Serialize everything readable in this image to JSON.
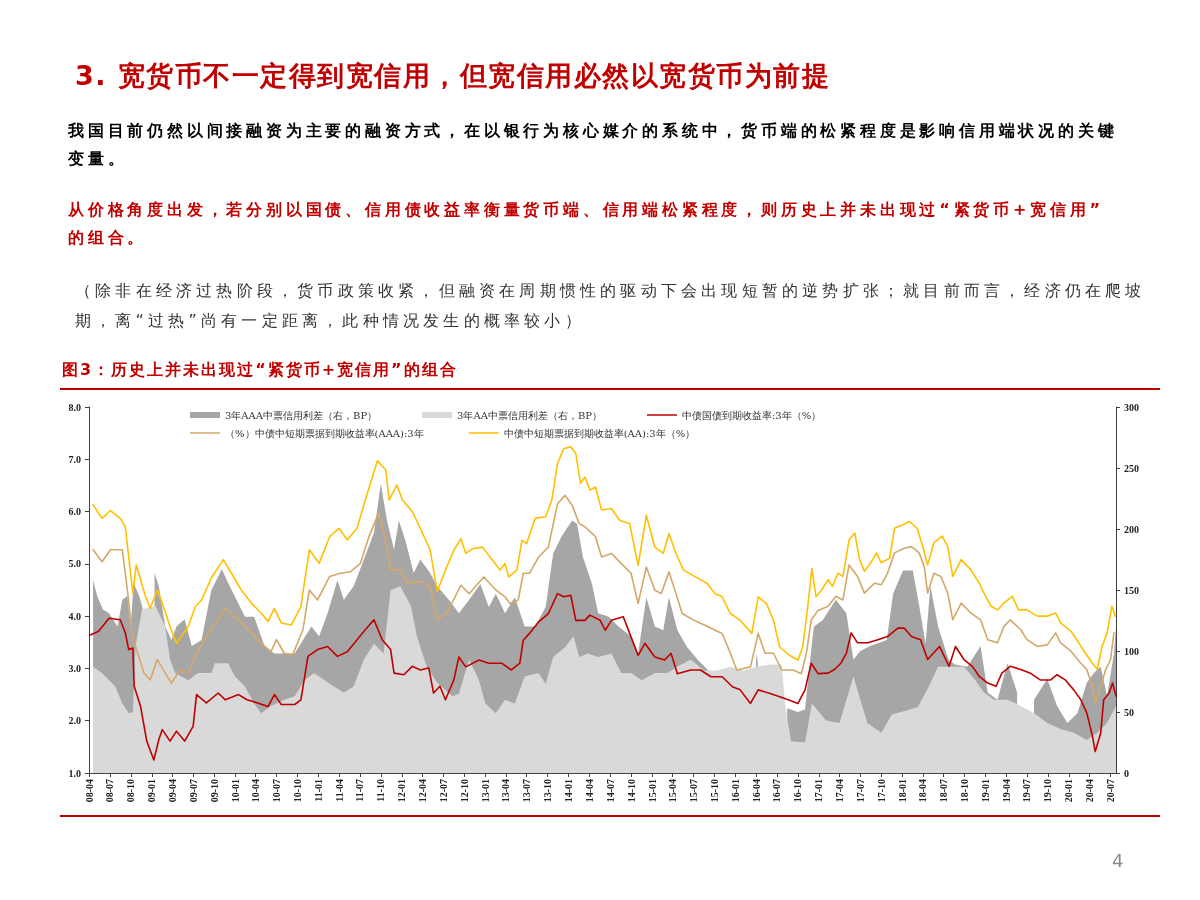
{
  "chart_data": {
    "type": "line",
    "title": "3. 宽货币不一定得到宽信用，但宽信用必然以宽货币为前提",
    "subtitle": "图3：历史上并未出现过“紧货币+宽信用”的组合",
    "annotations": [
      "我国目前仍然以间接融资为主要的融资方式，在以银行为核心媒介的系统中，货币端的松紧程度是影响信用端状况的关键变量。",
      "从价格角度出发，若分别以国债、信用债收益率衡量货币端、信用端松紧程度，则历史上并未出现过“紧货币+宽信用”的组合。",
      "（除非在经济过热阶段，货币政策收紧，但融资在周期惯性的驱动下会出现短暂的逆势扩张；就目前而言，经济仍在爬坡期，离“过热”尚有一定距离，此种情况发生的概率较小）",
      "4"
    ],
    "legend": "top",
    "marker": "none",
    "xlim": [
      "2008-04-01",
      "2020-07-25"
    ],
    "xticks": [
      {
        "value": "2008-04",
        "label": "08-04"
      },
      {
        "value": "2008-07",
        "label": "08-07"
      },
      {
        "value": "2008-10",
        "label": "08-10"
      },
      {
        "value": "2009-01",
        "label": "09-01"
      },
      {
        "value": "2009-04",
        "label": "09-04"
      },
      {
        "value": "2009-07",
        "label": "09-07"
      },
      {
        "value": "2009-10",
        "label": "09-10"
      },
      {
        "value": "2010-01",
        "label": "10-01"
      },
      {
        "value": "2010-04",
        "label": "10-04"
      },
      {
        "value": "2010-07",
        "label": "10-07"
      },
      {
        "value": "2010-10",
        "label": "10-10"
      },
      {
        "value": "2011-01",
        "label": "11-01"
      },
      {
        "value": "2011-04",
        "label": "11-04"
      },
      {
        "value": "2011-07",
        "label": "11-07"
      },
      {
        "value": "2011-10",
        "label": "11-10"
      },
      {
        "value": "2012-01",
        "label": "12-01"
      },
      {
        "value": "2012-04",
        "label": "12-04"
      },
      {
        "value": "2012-07",
        "label": "12-07"
      },
      {
        "value": "2012-10",
        "label": "12-10"
      },
      {
        "value": "2013-01",
        "label": "13-01"
      },
      {
        "value": "2013-04",
        "label": "13-04"
      },
      {
        "value": "2013-07",
        "label": "13-07"
      },
      {
        "value": "2013-10",
        "label": "13-10"
      },
      {
        "value": "2014-01",
        "label": "14-01"
      },
      {
        "value": "2014-04",
        "label": "14-04"
      },
      {
        "value": "2014-07",
        "label": "14-07"
      },
      {
        "value": "2014-10",
        "label": "14-10"
      },
      {
        "value": "2015-01",
        "label": "15-01"
      },
      {
        "value": "2015-04",
        "label": "15-04"
      },
      {
        "value": "2015-07",
        "label": "15-07"
      },
      {
        "value": "2015-10",
        "label": "15-10"
      },
      {
        "value": "2016-01",
        "label": "16-01"
      },
      {
        "value": "2016-04",
        "label": "16-04"
      },
      {
        "value": "2016-07",
        "label": "16-07"
      },
      {
        "value": "2016-10",
        "label": "16-10"
      },
      {
        "value": "2017-01",
        "label": "17-01"
      },
      {
        "value": "2017-04",
        "label": "17-04"
      },
      {
        "value": "2017-07",
        "label": "17-07"
      },
      {
        "value": "2017-10",
        "label": "17-10"
      },
      {
        "value": "2018-01",
        "label": "18-01"
      },
      {
        "value": "2018-04",
        "label": "18-04"
      },
      {
        "value": "2018-07",
        "label": "18-07"
      },
      {
        "value": "2018-10",
        "label": "18-10"
      },
      {
        "value": "2019-01",
        "label": "19-01"
      },
      {
        "value": "2019-04",
        "label": "19-04"
      },
      {
        "value": "2019-07",
        "label": "19-07"
      },
      {
        "value": "2019-10",
        "label": "19-10"
      },
      {
        "value": "2020-01",
        "label": "20-01"
      },
      {
        "value": "2020-04",
        "label": "20-04"
      },
      {
        "value": "2020-07",
        "label": "20-07"
      }
    ],
    "ylim": [
      1,
      8
    ],
    "yticks": [
      {
        "value": 1,
        "label": "1.0"
      },
      {
        "value": 2,
        "label": "2.0"
      },
      {
        "value": 3,
        "label": "3.0"
      },
      {
        "value": 4,
        "label": "4.0"
      },
      {
        "value": 5,
        "label": "5.0"
      },
      {
        "value": 6,
        "label": "6.0"
      },
      {
        "value": 7,
        "label": "7.0"
      },
      {
        "value": 8,
        "label": "8.0"
      }
    ],
    "y2lim": [
      0,
      300
    ],
    "y2ticks": [
      0,
      50,
      100,
      150,
      200,
      250,
      300
    ],
    "series": [
      {
        "name": "3年AAA中票信用利差（右，BP）",
        "type": "area",
        "axis": "y2",
        "color": "#a6a6a6",
        "x": [
          "2008-04-19",
          "2008-05-07",
          "2008-06-01",
          "2008-06-28",
          "2008-08-04",
          "2008-08-25",
          "2008-09-16",
          "2008-10-01",
          "2008-10-13",
          "2008-11-07",
          "2008-11-28",
          "2008-12-19",
          "2009-01-13",
          "2009-02-01",
          "2009-03-01",
          "2009-03-28",
          "2009-04-19",
          "2009-05-25",
          "2009-06-25",
          "2009-08-07",
          "2009-09-19",
          "2009-11-04",
          "2009-12-01",
          "2010-01-07",
          "2010-02-13",
          "2010-03-25",
          "2010-05-10",
          "2010-06-22",
          "2010-08-04",
          "2010-09-19",
          "2010-10-25",
          "2010-12-01",
          "2011-01-04",
          "2011-02-10",
          "2011-03-25",
          "2011-04-22",
          "2011-06-04",
          "2011-07-19",
          "2011-09-01",
          "2011-10-01",
          "2011-10-28",
          "2011-11-28",
          "2011-12-19",
          "2012-01-16",
          "2012-02-22",
          "2012-03-22",
          "2012-05-04",
          "2012-06-04",
          "2012-07-25",
          "2012-09-07",
          "2012-10-22",
          "2012-12-10",
          "2013-01-16",
          "2013-02-16",
          "2013-03-28",
          "2013-05-10",
          "2013-06-22",
          "2013-08-07",
          "2013-09-22",
          "2013-10-25",
          "2013-12-01",
          "2014-01-16",
          "2014-02-07",
          "2014-03-04",
          "2014-04-13",
          "2014-05-10",
          "2014-06-25",
          "2014-08-07",
          "2014-10-01",
          "2014-11-01",
          "2014-12-07",
          "2015-01-13",
          "2015-02-19",
          "2015-03-16",
          "2015-04-22",
          "2015-06-04",
          "2015-07-19",
          "2015-09-16",
          "2015-10-28",
          "2015-12-10",
          "2016-01-22",
          "2016-03-22",
          "2016-03-31",
          "2016-04-04",
          "2016-04-08",
          "2016-04-28",
          "2016-06-01",
          "2016-07-28",
          "2016-08-15",
          "2016-10-01",
          "2016-11-01",
          "2016-12-01",
          "2016-12-10",
          "2017-01-16",
          "2017-03-16",
          "2017-05-01",
          "2017-06-01",
          "2017-07-01",
          "2017-08-13",
          "2017-10-25",
          "2017-11-22",
          "2018-01-04",
          "2018-02-16",
          "2018-03-16",
          "2018-04-13",
          "2018-05-04",
          "2018-06-07",
          "2018-07-22",
          "2018-08-19",
          "2018-10-13",
          "2018-12-10",
          "2019-01-10",
          "2019-02-22",
          "2019-04-07",
          "2019-05-19",
          "2019-06-19",
          "2019-08-01",
          "2019-09-28",
          "2019-11-10",
          "2019-12-25",
          "2020-02-07",
          "2020-03-19",
          "2020-04-19",
          "2020-05-19",
          "2020-06-16",
          "2020-07-16",
          "2020-07-25"
        ],
        "values": [
          158,
          145,
          134,
          131,
          120,
          142,
          145,
          120,
          156,
          145,
          131,
          null,
          164,
          153,
          120,
          109,
          120,
          126,
          104,
          109,
          150,
          167,
          156,
          142,
          128,
          128,
          104,
          98,
          98,
          98,
          109,
          120,
          112,
          131,
          158,
          142,
          153,
          175,
          197,
          237,
          207,
          183,
          207,
          191,
          164,
          175,
          164,
          153,
          142,
          131,
          142,
          155,
          136,
          147,
          131,
          144,
          120,
          120,
          136,
          180,
          194,
          207,
          204,
          177,
          155,
          131,
          128,
          120,
          112,
          98,
          144,
          120,
          117,
          144,
          117,
          103,
          93,
          82,
          null,
          null,
          null,
          null,
          90,
          98,
          90,
          null,
          null,
          null,
          53,
          50,
          52,
          106,
          120,
          125,
          142,
          131,
          93,
          100,
          104,
          109,
          147,
          166,
          166,
          137,
          106,
          153,
          120,
          93,
          89,
          87,
          104,
          66,
          60,
          90,
          66,
          null,
          60,
          77,
          55,
          41,
          49,
          74,
          82,
          87,
          63,
          98,
          120
        ]
      },
      {
        "name": "3年AA中票信用利差（右，BP）",
        "type": "area",
        "axis": "y2",
        "color": "#d9d9d9",
        "x": [
          "2008-04-19",
          "2008-05-28",
          "2008-07-25",
          "2008-08-25",
          "2008-09-22",
          "2008-10-10",
          "2008-10-22",
          "2008-11-19",
          "2009-01-16",
          "2009-03-01",
          "2009-03-22",
          "2009-04-13",
          "2009-06-10",
          "2009-07-22",
          "2009-09-19",
          "2009-10-04",
          "2009-12-01",
          "2010-01-01",
          "2010-02-13",
          "2010-03-25",
          "2010-04-25",
          "2010-06-07",
          "2010-08-04",
          "2010-09-19",
          "2010-11-01",
          "2010-12-13",
          "2011-01-28",
          "2011-03-10",
          "2011-04-22",
          "2011-06-04",
          "2011-07-19",
          "2011-09-01",
          "2011-10-13",
          "2011-11-13",
          "2011-12-25",
          "2012-02-10",
          "2012-03-07",
          "2012-04-19",
          "2012-06-04",
          "2012-08-10",
          "2012-09-07",
          "2012-10-22",
          "2012-12-04",
          "2013-01-01",
          "2013-02-16",
          "2013-03-28",
          "2013-05-10",
          "2013-06-22",
          "2013-08-22",
          "2013-09-22",
          "2013-10-25",
          "2013-12-16",
          "2014-01-22",
          "2014-02-16",
          "2014-03-25",
          "2014-05-10",
          "2014-07-07",
          "2014-08-19",
          "2014-10-01",
          "2014-11-16",
          "2015-01-13",
          "2015-03-10",
          "2015-04-22",
          "2015-06-19",
          "2015-08-16",
          "2015-10-13",
          "2015-12-10",
          "2016-02-07",
          "2016-04-04",
          "2016-06-01",
          "2016-07-22",
          "2016-08-07",
          "2016-09-01",
          "2016-11-01",
          "2016-12-01",
          "2017-02-01",
          "2017-04-01",
          "2017-06-01",
          "2017-08-01",
          "2017-10-01",
          "2017-11-16",
          "2018-01-16",
          "2018-03-10",
          "2018-04-25",
          "2018-06-07",
          "2018-08-19",
          "2018-09-28",
          "2018-11-13",
          "2018-12-25",
          "2019-02-07",
          "2019-04-07",
          "2019-06-04",
          "2019-08-01",
          "2019-09-28",
          "2019-11-25",
          "2020-01-22",
          "2020-03-19",
          "2020-05-04",
          "2020-06-16",
          "2020-07-25"
        ],
        "values": [
          87,
          82,
          71,
          57,
          49,
          50,
          104,
          134,
          137,
          120,
          93,
          82,
          76,
          82,
          82,
          90,
          90,
          79,
          71,
          57,
          49,
          55,
          60,
          63,
          76,
          82,
          76,
          71,
          66,
          71,
          93,
          106,
          98,
          150,
          153,
          137,
          112,
          87,
          74,
          63,
          65,
          93,
          76,
          57,
          49,
          60,
          57,
          79,
          82,
          73,
          95,
          103,
          112,
          95,
          98,
          95,
          98,
          82,
          82,
          76,
          82,
          82,
          87,
          93,
          84,
          84,
          87,
          84,
          87,
          89,
          89,
          54,
          26,
          25,
          57,
          43,
          41,
          79,
          41,
          33,
          48,
          51,
          54,
          70,
          87,
          87,
          87,
          77,
          66,
          60,
          60,
          55,
          49,
          41,
          36,
          33,
          27,
          33,
          41,
          55
        ]
      },
      {
        "name": "中债国债到期收益率:3年（%）",
        "color": "#c00000",
        "x": [
          "2008-04-07",
          "2008-05-13",
          "2008-06-28",
          "2008-08-16",
          "2008-09-07",
          "2008-09-22",
          "2008-10-10",
          "2008-10-16",
          "2008-11-13",
          "2008-12-10",
          "2009-01-10",
          "2009-02-01",
          "2009-02-16",
          "2009-03-22",
          "2009-04-19",
          "2009-05-25",
          "2009-07-01",
          "2009-07-16",
          "2009-08-28",
          "2009-10-19",
          "2009-11-19",
          "2010-01-16",
          "2010-02-22",
          "2010-04-10",
          "2010-05-25",
          "2010-06-22",
          "2010-07-22",
          "2010-09-19",
          "2010-10-16",
          "2010-11-16",
          "2010-12-28",
          "2011-02-10",
          "2011-03-25",
          "2011-05-07",
          "2011-06-19",
          "2011-07-25",
          "2011-09-01",
          "2011-10-07",
          "2011-11-13",
          "2011-11-28",
          "2012-01-10",
          "2012-02-16",
          "2012-03-22",
          "2012-04-28",
          "2012-05-19",
          "2012-06-16",
          "2012-07-10",
          "2012-08-16",
          "2012-09-07",
          "2012-10-07",
          "2012-12-04",
          "2013-01-16",
          "2013-03-13",
          "2013-04-25",
          "2013-06-01",
          "2013-06-16",
          "2013-07-13",
          "2013-08-22",
          "2013-10-04",
          "2013-11-13",
          "2013-12-10",
          "2014-01-10",
          "2014-02-01",
          "2014-03-13",
          "2014-04-04",
          "2014-05-19",
          "2014-06-10",
          "2014-07-07",
          "2014-08-28",
          "2014-09-25",
          "2014-11-01",
          "2014-12-01",
          "2015-01-13",
          "2015-02-25",
          "2015-03-25",
          "2015-04-22",
          "2015-06-19",
          "2015-08-01",
          "2015-09-16",
          "2015-11-04",
          "2015-12-19",
          "2016-01-22",
          "2016-03-07",
          "2016-04-10",
          "2016-06-01",
          "2016-07-13",
          "2016-08-25",
          "2016-10-01",
          "2016-11-01",
          "2016-11-28",
          "2016-12-28",
          "2017-02-10",
          "2017-03-10",
          "2017-04-07",
          "2017-05-01",
          "2017-05-22",
          "2017-06-19",
          "2017-08-04",
          "2017-09-16",
          "2017-10-28",
          "2017-12-13",
          "2018-01-10",
          "2018-02-10",
          "2018-03-22",
          "2018-04-22",
          "2018-06-13",
          "2018-07-25",
          "2018-08-22",
          "2018-09-28",
          "2018-11-04",
          "2018-12-04",
          "2019-01-10",
          "2019-02-16",
          "2019-03-13",
          "2019-04-19",
          "2019-06-04",
          "2019-07-16",
          "2019-08-28",
          "2019-10-13",
          "2019-11-10",
          "2019-12-16",
          "2020-01-22",
          "2020-02-22",
          "2020-03-19",
          "2020-04-13",
          "2020-04-25",
          "2020-05-19",
          "2020-06-01",
          "2020-06-25",
          "2020-07-10",
          "2020-07-25"
        ],
        "values": [
          3.64,
          3.71,
          3.96,
          3.93,
          3.68,
          3.36,
          3.39,
          2.66,
          2.27,
          1.61,
          1.25,
          1.64,
          1.83,
          1.61,
          1.8,
          1.61,
          1.89,
          2.5,
          2.34,
          2.53,
          2.4,
          2.5,
          2.4,
          2.34,
          2.27,
          2.5,
          2.31,
          2.31,
          2.4,
          3.23,
          3.36,
          3.42,
          3.23,
          3.32,
          3.55,
          3.74,
          3.93,
          3.55,
          3.36,
          2.91,
          2.88,
          3.04,
          2.97,
          3.01,
          2.53,
          2.66,
          2.4,
          2.78,
          3.22,
          3.03,
          3.16,
          3.1,
          3.1,
          2.97,
          3.1,
          3.54,
          3.67,
          3.89,
          4.05,
          4.43,
          4.37,
          4.4,
          3.92,
          3.92,
          4.02,
          3.92,
          3.73,
          3.92,
          3.99,
          3.67,
          3.25,
          3.48,
          3.22,
          3.16,
          3.29,
          2.9,
          2.97,
          2.97,
          2.84,
          2.84,
          2.65,
          2.59,
          2.33,
          2.59,
          2.52,
          2.46,
          2.39,
          2.33,
          2.59,
          3.1,
          2.9,
          2.91,
          2.98,
          3.1,
          3.29,
          3.68,
          3.49,
          3.49,
          3.55,
          3.61,
          3.77,
          3.77,
          3.61,
          3.55,
          3.17,
          3.42,
          3.04,
          3.42,
          3.17,
          3.04,
          2.85,
          2.72,
          2.66,
          2.91,
          3.04,
          2.98,
          2.91,
          2.78,
          2.78,
          2.88,
          2.78,
          2.59,
          2.4,
          2.15,
          1.7,
          1.41,
          1.76,
          2.4,
          2.53,
          2.72,
          2.47
        ]
      },
      {
        "name": "（%）中债中短期票据到期收益率(AAA):3年",
        "color": "#d4a76a",
        "x": [
          "2008-04-19",
          "2008-05-28",
          "2008-07-04",
          "2008-08-25",
          "2008-09-16",
          "2008-10-07",
          "2008-10-22",
          "2008-11-28",
          "2008-12-25",
          "2009-01-25",
          "2009-03-01",
          "2009-03-28",
          "2009-05-04",
          "2009-06-10",
          "2009-07-16",
          "2009-09-07",
          "2009-11-19",
          "2010-01-16",
          "2010-03-13",
          "2010-04-25",
          "2010-06-07",
          "2010-07-01",
          "2010-08-04",
          "2010-09-10",
          "2010-10-25",
          "2010-11-22",
          "2010-12-28",
          "2011-02-19",
          "2011-04-07",
          "2011-05-22",
          "2011-07-04",
          "2011-08-10",
          "2011-09-22",
          "2011-10-28",
          "2011-11-13",
          "2011-12-25",
          "2012-01-25",
          "2012-03-22",
          "2012-05-04",
          "2012-06-04",
          "2012-07-16",
          "2012-09-16",
          "2012-10-22",
          "2012-12-25",
          "2013-02-16",
          "2013-03-28",
          "2013-04-19",
          "2013-05-25",
          "2013-06-16",
          "2013-07-13",
          "2013-08-22",
          "2013-10-04",
          "2013-11-13",
          "2013-12-16",
          "2014-01-16",
          "2014-02-16",
          "2014-03-13",
          "2014-04-28",
          "2014-05-25",
          "2014-07-07",
          "2014-08-19",
          "2014-10-01",
          "2014-11-01",
          "2014-12-07",
          "2015-01-13",
          "2015-02-10",
          "2015-03-16",
          "2015-04-16",
          "2015-05-13",
          "2015-07-04",
          "2015-09-01",
          "2015-10-04",
          "2015-11-04",
          "2015-12-10",
          "2016-01-07",
          "2016-03-07",
          "2016-04-10",
          "2016-05-10",
          "2016-06-16",
          "2016-07-22",
          "2016-09-10",
          "2016-10-16",
          "2016-11-07",
          "2016-11-28",
          "2016-12-28",
          "2017-02-10",
          "2017-03-16",
          "2017-04-16",
          "2017-05-13",
          "2017-06-19",
          "2017-07-19",
          "2017-09-01",
          "2017-10-01",
          "2017-10-28",
          "2017-11-28",
          "2018-01-10",
          "2018-02-10",
          "2018-03-16",
          "2018-04-07",
          "2018-04-22",
          "2018-05-19",
          "2018-06-19",
          "2018-07-19",
          "2018-08-10",
          "2018-09-16",
          "2018-10-28",
          "2018-12-10",
          "2019-01-10",
          "2019-02-22",
          "2019-03-22",
          "2019-04-19",
          "2019-06-04",
          "2019-07-01",
          "2019-08-16",
          "2019-09-28",
          "2019-11-04",
          "2019-11-25",
          "2020-01-10",
          "2020-02-22",
          "2020-03-19",
          "2020-04-13",
          "2020-04-25",
          "2020-05-19",
          "2020-06-10",
          "2020-07-01",
          "2020-07-16"
        ],
        "values": [
          5.27,
          5.04,
          5.27,
          5.27,
          4.5,
          3.68,
          3.42,
          2.91,
          2.78,
          3.17,
          2.91,
          2.72,
          2.97,
          2.91,
          3.29,
          3.68,
          4.15,
          3.93,
          3.68,
          3.48,
          3.32,
          3.55,
          3.29,
          3.26,
          3.74,
          4.5,
          4.31,
          4.76,
          4.82,
          4.85,
          5.01,
          5.52,
          5.97,
          5.33,
          4.89,
          4.89,
          4.63,
          4.66,
          4.57,
          3.93,
          4.06,
          4.59,
          4.43,
          4.75,
          4.5,
          4.37,
          4.24,
          4.31,
          4.82,
          4.82,
          5.13,
          5.32,
          6.15,
          6.31,
          6.12,
          5.77,
          5.71,
          5.52,
          5.13,
          5.2,
          5.01,
          4.82,
          4.24,
          4.94,
          4.5,
          4.43,
          4.85,
          4.43,
          4.05,
          3.92,
          3.8,
          3.73,
          3.67,
          3.29,
          2.97,
          3.03,
          3.67,
          3.29,
          3.29,
          2.97,
          2.97,
          2.9,
          3.29,
          3.92,
          4.11,
          4.19,
          4.38,
          4.31,
          4.98,
          4.76,
          4.44,
          4.63,
          4.6,
          4.82,
          5.21,
          5.3,
          5.33,
          5.21,
          4.95,
          4.44,
          4.82,
          4.76,
          4.44,
          3.93,
          4.25,
          4.06,
          3.93,
          3.55,
          3.49,
          3.8,
          3.93,
          3.74,
          3.55,
          3.42,
          3.45,
          3.68,
          3.49,
          3.33,
          3.1,
          2.98,
          2.66,
          2.34,
          2.66,
          2.98,
          3.17,
          3.68
        ]
      },
      {
        "name": "中债中短期票据到期收益率(AA):3年（%）",
        "color": "#ffc000",
        "x": [
          "2008-04-19",
          "2008-05-28",
          "2008-07-04",
          "2008-08-16",
          "2008-09-07",
          "2008-09-25",
          "2008-10-10",
          "2008-10-25",
          "2008-12-04",
          "2008-12-25",
          "2009-01-25",
          "2009-02-16",
          "2009-03-22",
          "2009-04-19",
          "2009-06-10",
          "2009-07-10",
          "2009-08-07",
          "2009-09-19",
          "2009-11-10",
          "2009-12-16",
          "2010-01-28",
          "2010-03-13",
          "2010-04-25",
          "2010-05-25",
          "2010-06-22",
          "2010-07-22",
          "2010-09-04",
          "2010-10-16",
          "2010-11-22",
          "2011-01-04",
          "2011-02-19",
          "2011-04-01",
          "2011-05-07",
          "2011-06-19",
          "2011-07-25",
          "2011-09-16",
          "2011-10-22",
          "2011-11-07",
          "2011-12-10",
          "2012-01-04",
          "2012-02-16",
          "2012-03-22",
          "2012-05-04",
          "2012-06-04",
          "2012-07-10",
          "2012-08-16",
          "2012-09-16",
          "2012-10-07",
          "2012-11-07",
          "2012-12-19",
          "2013-02-01",
          "2013-03-07",
          "2013-03-28",
          "2013-04-13",
          "2013-05-19",
          "2013-06-10",
          "2013-07-01",
          "2013-08-07",
          "2013-09-22",
          "2013-10-19",
          "2013-11-13",
          "2013-12-10",
          "2014-01-10",
          "2014-02-01",
          "2014-02-22",
          "2014-03-13",
          "2014-04-04",
          "2014-04-28",
          "2014-05-25",
          "2014-07-07",
          "2014-08-13",
          "2014-09-25",
          "2014-11-01",
          "2014-12-07",
          "2015-01-13",
          "2015-02-19",
          "2015-03-16",
          "2015-04-16",
          "2015-05-19",
          "2015-07-10",
          "2015-09-01",
          "2015-10-04",
          "2015-11-04",
          "2015-12-10",
          "2016-01-22",
          "2016-03-13",
          "2016-04-10",
          "2016-05-16",
          "2016-06-16",
          "2016-07-13",
          "2016-08-25",
          "2016-10-01",
          "2016-10-22",
          "2016-11-13",
          "2016-12-01",
          "2016-12-19",
          "2017-01-13",
          "2017-02-10",
          "2017-03-01",
          "2017-03-25",
          "2017-04-16",
          "2017-05-13",
          "2017-06-07",
          "2017-06-28",
          "2017-07-19",
          "2017-08-16",
          "2017-09-10",
          "2017-10-01",
          "2017-11-07",
          "2017-11-28",
          "2018-01-04",
          "2018-02-01",
          "2018-03-07",
          "2018-04-01",
          "2018-04-22",
          "2018-05-19",
          "2018-06-25",
          "2018-07-19",
          "2018-08-10",
          "2018-09-16",
          "2018-10-28",
          "2018-12-04",
          "2018-12-25",
          "2019-01-25",
          "2019-02-22",
          "2019-03-22",
          "2019-04-28",
          "2019-05-25",
          "2019-07-01",
          "2019-08-16",
          "2019-09-28",
          "2019-11-04",
          "2019-11-25",
          "2020-01-10",
          "2020-02-13",
          "2020-03-13",
          "2020-04-13",
          "2020-05-04",
          "2020-05-25",
          "2020-06-16",
          "2020-07-07",
          "2020-07-22"
        ],
        "values": [
          6.13,
          5.87,
          6.02,
          5.87,
          5.71,
          5.01,
          4.44,
          4.98,
          4.38,
          4.15,
          4.5,
          4.25,
          3.8,
          3.48,
          3.8,
          4.18,
          4.31,
          4.73,
          5.08,
          4.82,
          4.5,
          4.25,
          4.06,
          3.9,
          4.15,
          3.87,
          3.83,
          4.18,
          5.27,
          5.01,
          5.52,
          5.68,
          5.46,
          5.68,
          6.22,
          6.97,
          6.8,
          6.22,
          6.51,
          6.22,
          6.0,
          5.68,
          5.27,
          4.47,
          4.88,
          5.26,
          5.48,
          5.2,
          5.29,
          5.32,
          5.07,
          4.88,
          5.01,
          4.75,
          4.88,
          5.45,
          5.39,
          5.87,
          5.9,
          6.22,
          6.92,
          7.2,
          7.24,
          7.11,
          6.54,
          6.66,
          6.41,
          6.47,
          6.03,
          6.06,
          5.83,
          5.77,
          4.97,
          5.93,
          5.32,
          5.2,
          5.58,
          5.2,
          4.88,
          4.75,
          4.62,
          4.43,
          4.37,
          4.05,
          3.92,
          3.67,
          4.37,
          4.24,
          3.92,
          3.41,
          3.25,
          3.16,
          3.41,
          4.18,
          4.91,
          4.37,
          4.5,
          4.7,
          4.57,
          4.82,
          4.76,
          5.46,
          5.59,
          5.08,
          4.86,
          5.02,
          5.21,
          5.02,
          5.11,
          5.68,
          5.75,
          5.81,
          5.68,
          5.33,
          4.98,
          5.4,
          5.53,
          5.33,
          4.76,
          5.08,
          4.89,
          4.63,
          4.44,
          4.19,
          4.12,
          4.25,
          4.38,
          4.12,
          4.12,
          4.0,
          4.0,
          4.06,
          3.87,
          3.71,
          3.49,
          3.29,
          3.1,
          2.98,
          3.42,
          3.68,
          4.19,
          4.0
        ]
      }
    ]
  }
}
